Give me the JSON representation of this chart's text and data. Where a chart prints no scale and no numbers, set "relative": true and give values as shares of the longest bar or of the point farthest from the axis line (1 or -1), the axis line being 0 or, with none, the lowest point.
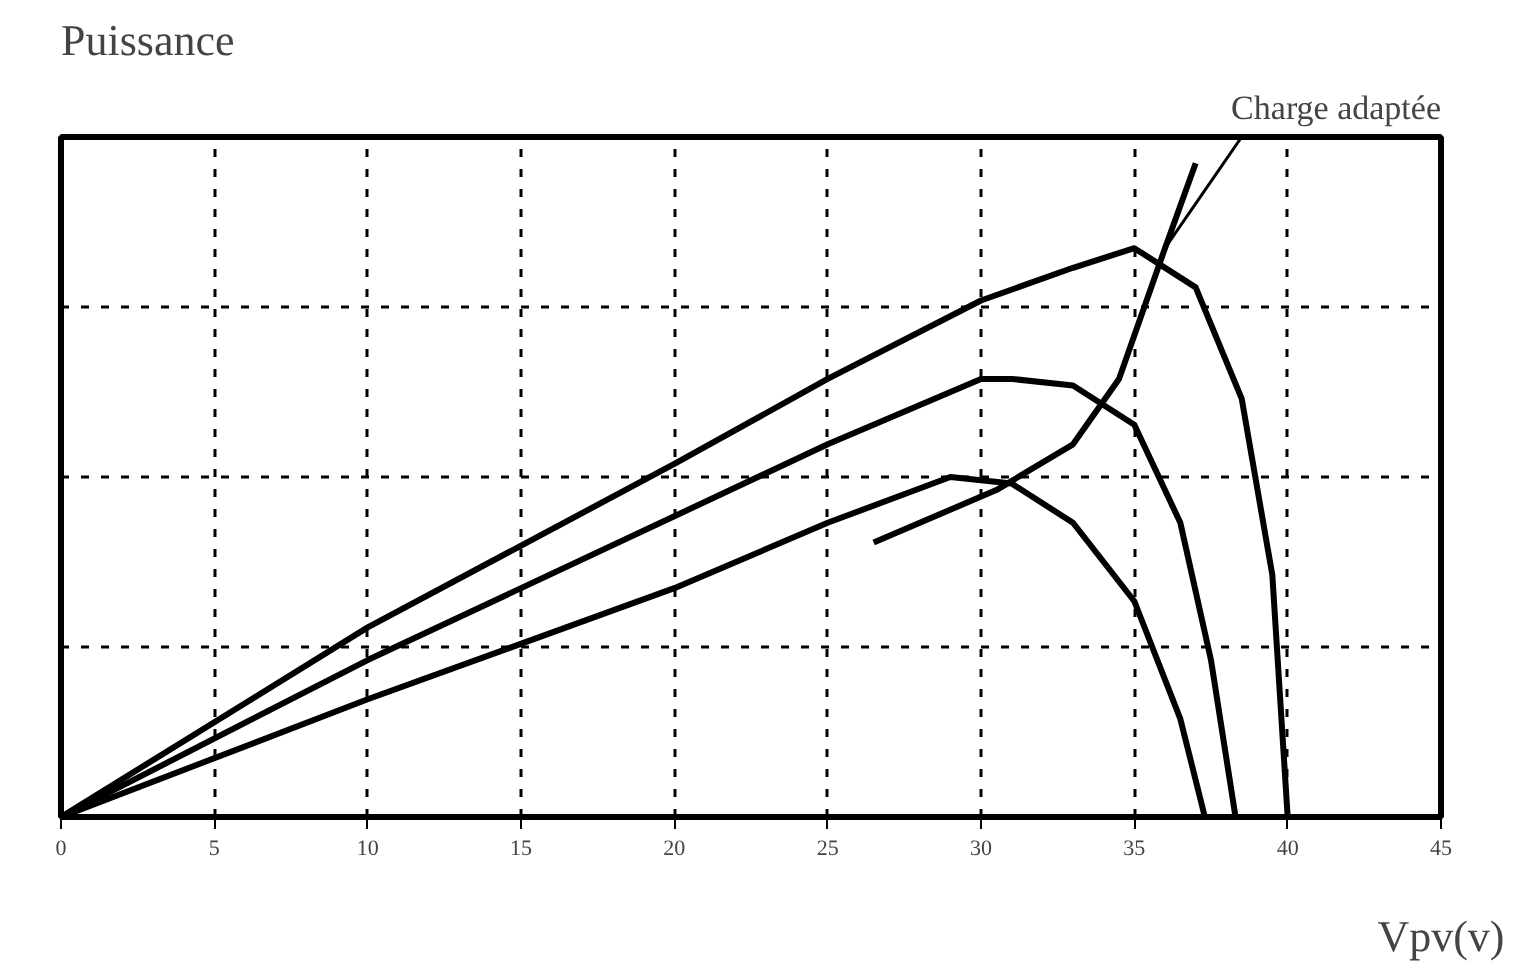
{
  "chart_data": {
    "type": "line",
    "relative": true,
    "ylabel": "Puissance",
    "xlabel": "Vpv(v)",
    "xlim": [
      0,
      45
    ],
    "xticks": [
      0,
      5,
      10,
      15,
      20,
      25,
      30,
      35,
      40,
      45
    ],
    "grid": true,
    "line_style": "solid",
    "annotations": [
      {
        "text": "Charge adaptée",
        "x": 36,
        "y": 0.87
      }
    ],
    "series": [
      {
        "color": "#000000",
        "x": [
          0,
          10,
          20,
          25,
          30,
          33,
          35,
          37,
          38.5,
          39.5,
          40
        ],
        "values": [
          0,
          0.29,
          0.54,
          0.67,
          0.79,
          0.84,
          0.87,
          0.81,
          0.64,
          0.37,
          0
        ]
      },
      {
        "color": "#000000",
        "x": [
          0,
          10,
          20,
          25,
          30,
          31,
          33,
          35,
          36.5,
          37.5,
          38.3
        ],
        "values": [
          0,
          0.24,
          0.46,
          0.57,
          0.67,
          0.67,
          0.66,
          0.6,
          0.45,
          0.24,
          0
        ]
      },
      {
        "color": "#000000",
        "x": [
          0,
          10,
          20,
          25,
          29,
          31,
          33,
          35,
          36.5,
          37.3
        ],
        "values": [
          0,
          0.18,
          0.35,
          0.45,
          0.52,
          0.51,
          0.45,
          0.33,
          0.15,
          0
        ]
      },
      {
        "color": "#000000",
        "x": [
          26.5,
          30.5,
          33,
          34.5,
          36,
          37
        ],
        "values": [
          0.42,
          0.5,
          0.57,
          0.67,
          0.87,
          1.0
        ]
      }
    ]
  }
}
